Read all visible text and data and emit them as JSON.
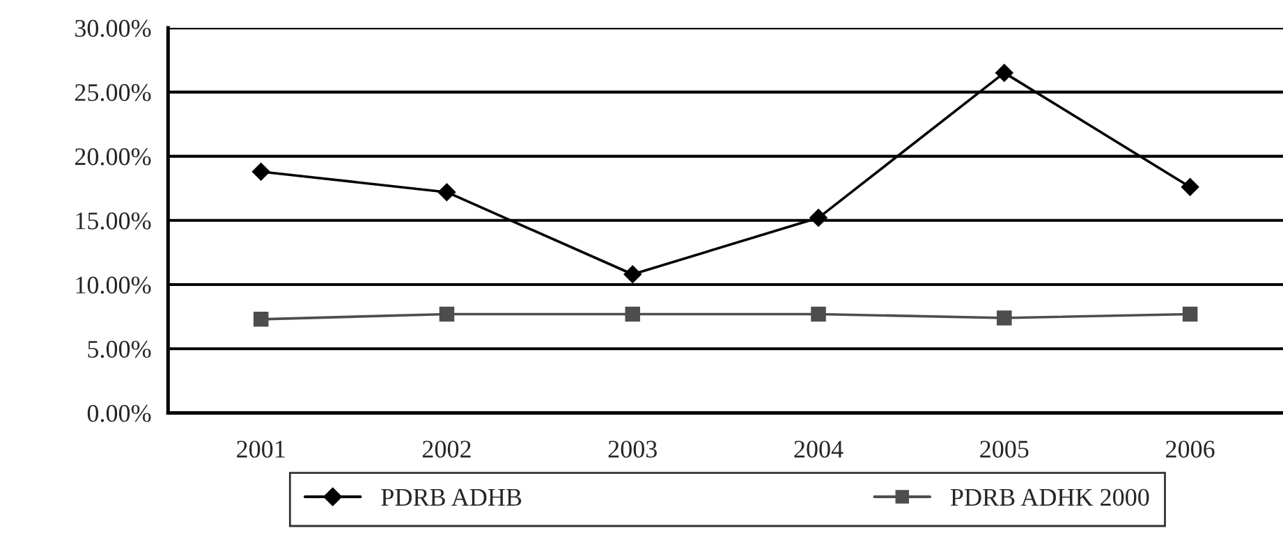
{
  "chart_data": {
    "type": "line",
    "categories": [
      "2001",
      "2002",
      "2003",
      "2004",
      "2005",
      "2006"
    ],
    "series": [
      {
        "name": "PDRB ADHB",
        "color": "#000000",
        "marker": "diamond",
        "values": [
          18.8,
          17.2,
          10.8,
          15.2,
          26.5,
          17.6
        ]
      },
      {
        "name": "PDRB ADHK 2000",
        "color": "#4d4d4d",
        "marker": "square",
        "values": [
          7.3,
          7.7,
          7.7,
          7.7,
          7.4,
          7.7
        ]
      }
    ],
    "ylim": [
      0,
      30
    ],
    "yticks": [
      {
        "value": 0,
        "label": "0.00%"
      },
      {
        "value": 5,
        "label": "5.00%"
      },
      {
        "value": 10,
        "label": "10.00%"
      },
      {
        "value": 15,
        "label": "15.00%"
      },
      {
        "value": 20,
        "label": "20.00%"
      },
      {
        "value": 25,
        "label": "25.00%"
      },
      {
        "value": 30,
        "label": "30.00%"
      }
    ],
    "grid": "y",
    "legend": "bottom",
    "line_style": "solid"
  }
}
